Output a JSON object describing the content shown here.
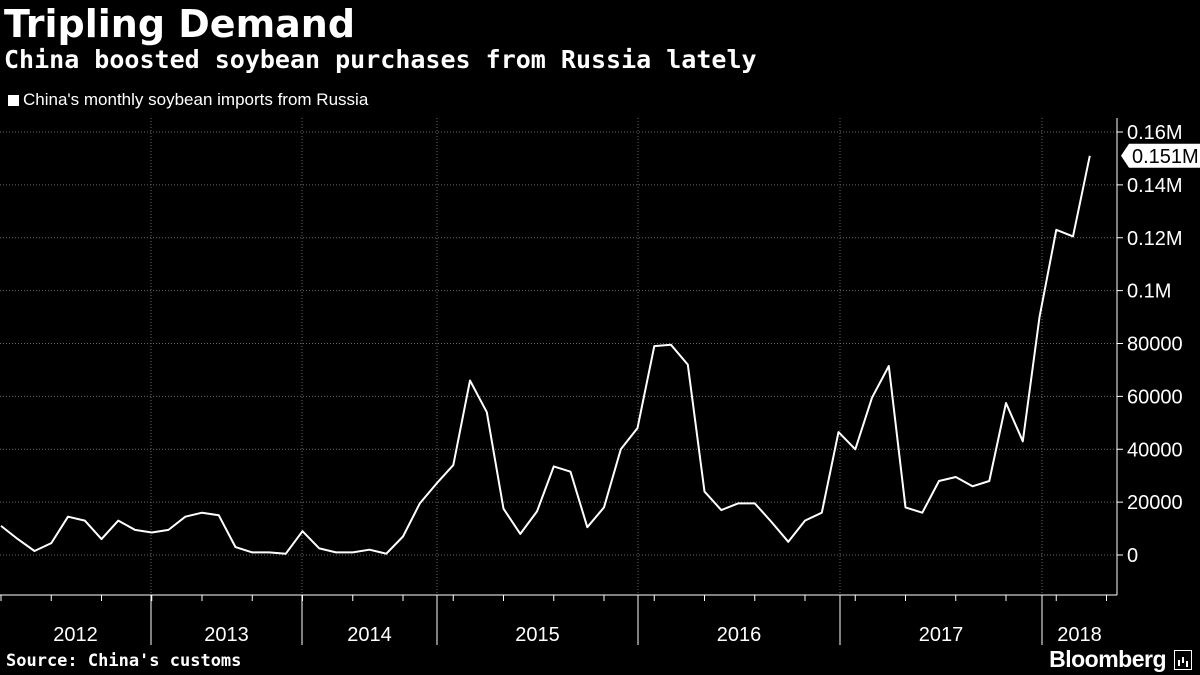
{
  "title": "Tripling Demand",
  "subtitle": "China boosted soybean purchases from Russia lately",
  "legend_label": "China's monthly soybean imports from Russia",
  "source": "Source: China's customs",
  "brand": "Bloomberg",
  "colors": {
    "background": "#000000",
    "line": "#ffffff",
    "grid": "#666666"
  },
  "chart_data": {
    "type": "line",
    "title": "Tripling Demand",
    "subtitle": "China boosted soybean purchases from Russia lately",
    "xlabel": "",
    "ylabel": "",
    "ylim": [
      -15000,
      165000
    ],
    "grid": true,
    "legend": "top-left",
    "y_ticks": [
      {
        "value": 0,
        "label": "0"
      },
      {
        "value": 20000,
        "label": "20000"
      },
      {
        "value": 40000,
        "label": "40000"
      },
      {
        "value": 60000,
        "label": "60000"
      },
      {
        "value": 80000,
        "label": "80000"
      },
      {
        "value": 100000,
        "label": "0.1M"
      },
      {
        "value": 120000,
        "label": "0.12M"
      },
      {
        "value": 140000,
        "label": "0.14M"
      },
      {
        "value": 160000,
        "label": "0.16M"
      }
    ],
    "years": [
      "2012",
      "2013",
      "2014",
      "2015",
      "2016",
      "2017",
      "2018"
    ],
    "last_value_label": "0.151M",
    "series": [
      {
        "name": "China's monthly soybean imports from Russia",
        "start": "2012-01",
        "values": [
          11000,
          6000,
          1500,
          4500,
          14500,
          13000,
          6000,
          13000,
          9500,
          8500,
          9500,
          14500,
          16000,
          15000,
          3000,
          1000,
          1000,
          500,
          9000,
          2500,
          1000,
          1000,
          2000,
          500,
          7000,
          19500,
          27000,
          34000,
          66000,
          54000,
          17500,
          8000,
          16500,
          33500,
          31500,
          10500,
          18000,
          40000,
          48000,
          79000,
          79500,
          72000,
          24000,
          17000,
          19500,
          19500,
          12500,
          5000,
          13000,
          16000,
          46500,
          40000,
          59500,
          71500,
          18000,
          16000,
          28000,
          29500,
          26000,
          28000,
          57500,
          43000,
          90000,
          123000,
          120500,
          151000
        ]
      }
    ]
  }
}
